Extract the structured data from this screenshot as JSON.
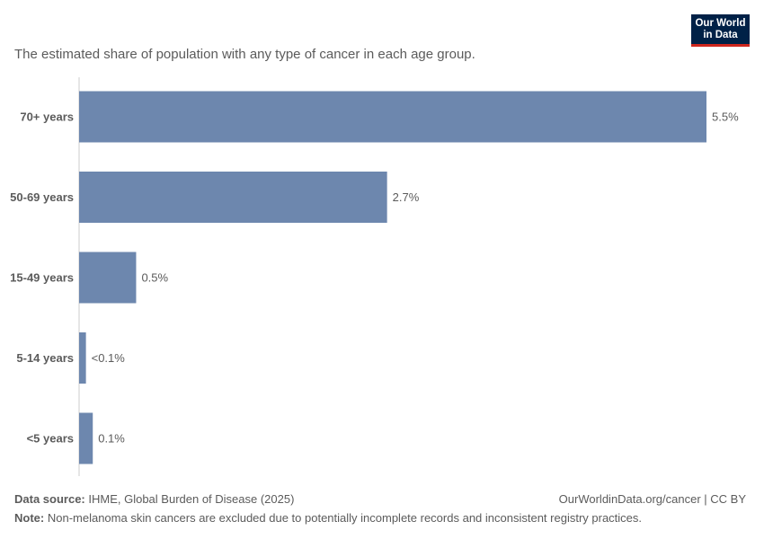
{
  "header": {
    "subtitle": "The estimated share of population with any type of cancer in each age group."
  },
  "logo": {
    "line1": "Our World",
    "line2": "in Data"
  },
  "chart_data": {
    "type": "bar",
    "orientation": "horizontal",
    "categories": [
      "70+ years",
      "50-69 years",
      "15-49 years",
      "5-14 years",
      "<5 years"
    ],
    "values": [
      5.5,
      2.7,
      0.5,
      0.06,
      0.12
    ],
    "value_labels": [
      "5.5%",
      "2.7%",
      "0.5%",
      "<0.1%",
      "0.1%"
    ],
    "xlim": [
      0,
      5.5
    ],
    "grid": false,
    "bar_color": "#6d87ae"
  },
  "footer": {
    "source_label": "Data source:",
    "source_text": "IHME, Global Burden of Disease (2025)",
    "note_label": "Note:",
    "note_text": "Non-melanoma skin cancers are excluded due to potentially incomplete records and inconsistent registry practices.",
    "credit": "OurWorldinData.org/cancer | CC BY"
  }
}
